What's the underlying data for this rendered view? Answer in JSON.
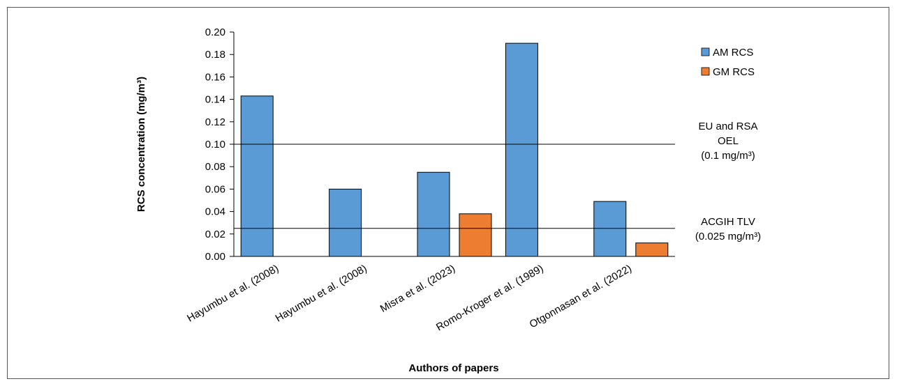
{
  "chart_data": {
    "type": "bar",
    "categories": [
      "Hayumbu et al. (2008)",
      "Hayumbu et al. (2008)",
      "Misra et al. (2023)",
      "Romo-Kroger et al. (1989)",
      "Otgonnasan et al. (2022)"
    ],
    "series": [
      {
        "name": "AM RCS",
        "values": [
          0.143,
          0.06,
          0.075,
          0.19,
          0.049
        ],
        "color": "#5b9bd5"
      },
      {
        "name": "GM RCS",
        "values": [
          null,
          null,
          0.038,
          null,
          0.012
        ],
        "color": "#ed7d31"
      }
    ],
    "xlabel": "Authors of papers",
    "ylabel": "RCS concentration (mg/m³)",
    "ylim": [
      0,
      0.2
    ],
    "yticks": [
      "0.00",
      "0.02",
      "0.04",
      "0.06",
      "0.08",
      "0.10",
      "0.12",
      "0.14",
      "0.16",
      "0.18",
      "0.20"
    ],
    "grid": false,
    "legend": "top-right",
    "reference_lines": [
      {
        "value": 0.1,
        "label_lines": [
          "EU and RSA",
          "OEL",
          "(0.1 mg/m³)"
        ]
      },
      {
        "value": 0.025,
        "label_lines": [
          "ACGIH TLV",
          "(0.025 mg/m³)"
        ]
      }
    ]
  }
}
